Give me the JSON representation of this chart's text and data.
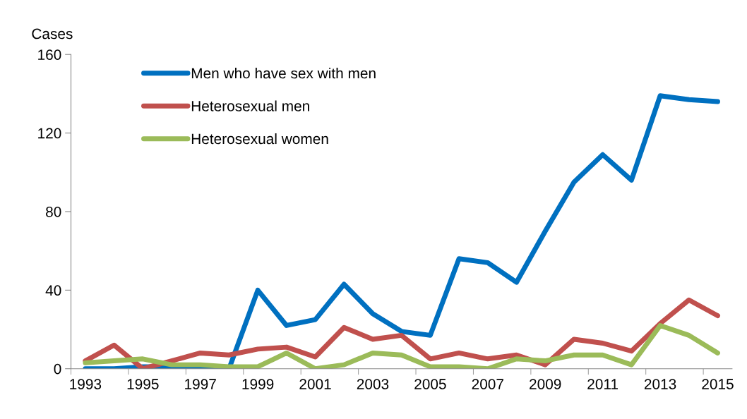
{
  "chart_data": {
    "type": "line",
    "ylabel": "Cases",
    "categories": [
      "1993",
      null,
      "1995",
      null,
      "1997",
      null,
      "1999",
      null,
      "2001",
      null,
      "2003",
      null,
      "2005",
      null,
      "2007",
      null,
      "2009",
      null,
      "2011",
      null,
      "2013",
      null,
      "2015"
    ],
    "series": [
      {
        "name": "Men who have sex with men",
        "color": "#0070c0",
        "values": [
          0,
          0,
          1,
          1,
          0,
          0,
          40,
          22,
          25,
          43,
          28,
          19,
          17,
          56,
          54,
          44,
          70,
          95,
          109,
          96,
          139,
          137,
          136
        ]
      },
      {
        "name": "Heterosexual men",
        "color": "#c0504d",
        "values": [
          4,
          12,
          0,
          4,
          8,
          7,
          10,
          11,
          6,
          21,
          15,
          17,
          5,
          8,
          5,
          7,
          2,
          15,
          13,
          9,
          23,
          35,
          27
        ]
      },
      {
        "name": "Heterosexual women",
        "color": "#9bbb59",
        "values": [
          3,
          4,
          5,
          2,
          2,
          1,
          1,
          8,
          0,
          2,
          8,
          7,
          1,
          1,
          0,
          5,
          4,
          7,
          7,
          2,
          22,
          17,
          8
        ]
      }
    ],
    "ylim": [
      0,
      160
    ],
    "yticks": [
      0,
      40,
      80,
      120,
      160
    ],
    "grid": false,
    "legend": "top left",
    "marker": "none",
    "line_style": "solid"
  }
}
